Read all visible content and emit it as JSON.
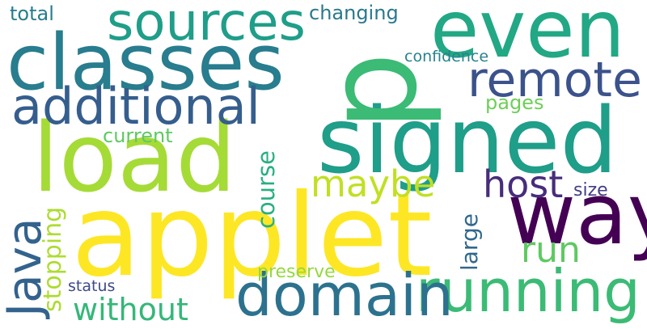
{
  "words": {
    "applet": {
      "text": "applet",
      "color": "#fde725"
    },
    "signed": {
      "text": "signed",
      "color": "#1f9e89"
    },
    "load": {
      "text": "load",
      "color": "#a5db36"
    },
    "classes": {
      "text": "classes",
      "color": "#287d8e"
    },
    "p": {
      "text": "p",
      "color": "#3bbb75"
    },
    "even": {
      "text": "even",
      "color": "#22a884"
    },
    "way": {
      "text": "way",
      "color": "#440154"
    },
    "running": {
      "text": "running",
      "color": "#3bbb75"
    },
    "domain": {
      "text": "domain",
      "color": "#2c728e"
    },
    "additional": {
      "text": "additional",
      "color": "#355e8d"
    },
    "sources": {
      "text": "sources",
      "color": "#1f9e89"
    },
    "remote": {
      "text": "remote",
      "color": "#3b528b"
    },
    "java": {
      "text": "Java",
      "color": "#33638d"
    },
    "host": {
      "text": "host",
      "color": "#472d7b"
    },
    "maybe": {
      "text": "maybe",
      "color": "#c2df23"
    },
    "run": {
      "text": "run",
      "color": "#5ec962"
    },
    "without": {
      "text": "without",
      "color": "#35b779"
    },
    "course": {
      "text": "course",
      "color": "#29af7f"
    },
    "large": {
      "text": "large",
      "color": "#31688e"
    },
    "stopping": {
      "text": "stopping",
      "color": "#addc30"
    },
    "changing": {
      "text": "changing",
      "color": "#2a788e"
    },
    "total": {
      "text": "total",
      "color": "#287c8e"
    },
    "current": {
      "text": "current",
      "color": "#5ec962"
    },
    "pages": {
      "text": "pages",
      "color": "#6ece58"
    },
    "confidence": {
      "text": "confidence",
      "color": "#26828e"
    },
    "size": {
      "text": "size",
      "color": "#433e85"
    },
    "preserve": {
      "text": "preserve",
      "color": "#95d840"
    },
    "status": {
      "text": "status",
      "color": "#3e4989"
    }
  }
}
